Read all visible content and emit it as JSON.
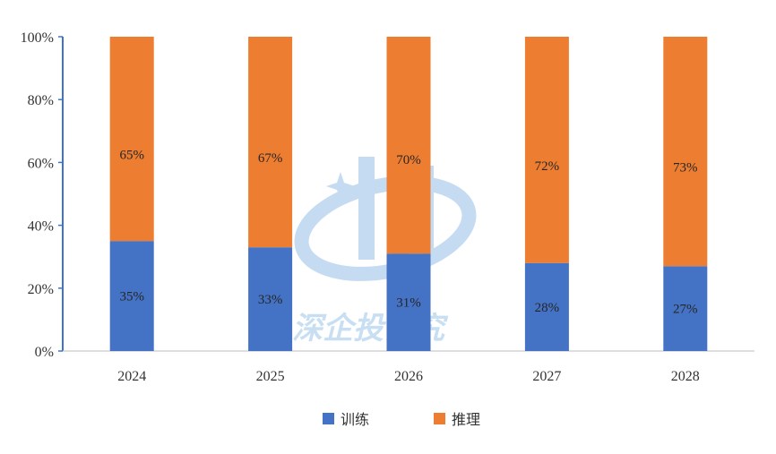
{
  "chart_data": {
    "type": "bar",
    "stacked": true,
    "categories": [
      "2024",
      "2025",
      "2026",
      "2027",
      "2028"
    ],
    "series": [
      {
        "name": "训练",
        "values": [
          35,
          33,
          31,
          28,
          27
        ],
        "labels": [
          "35%",
          "33%",
          "31%",
          "28%",
          "27%"
        ],
        "color": "#4472c4"
      },
      {
        "name": "推理",
        "values": [
          65,
          67,
          70,
          72,
          73
        ],
        "labels": [
          "65%",
          "67%",
          "70%",
          "72%",
          "73%"
        ],
        "color": "#ed7d31"
      }
    ],
    "yticks": [
      "0%",
      "20%",
      "40%",
      "60%",
      "80%",
      "100%"
    ],
    "ylim": [
      0,
      100
    ],
    "legend_position": "bottom",
    "grid": false
  },
  "watermark": {
    "text": "深企投研究",
    "color": "#9cc4e8"
  }
}
